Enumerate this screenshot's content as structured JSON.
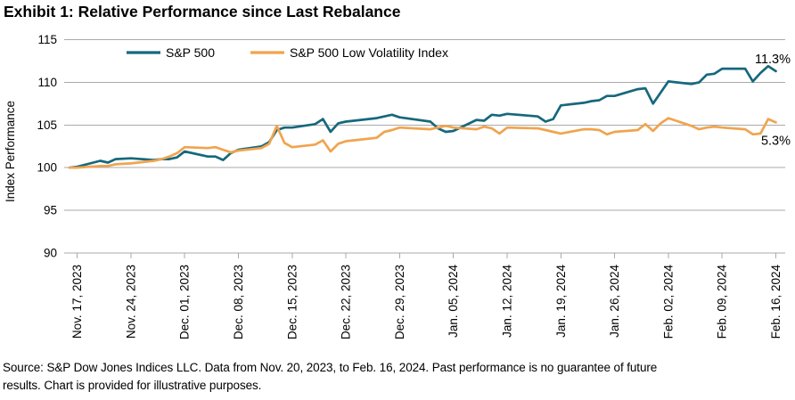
{
  "title": "Exhibit 1: Relative Performance since Last Rebalance",
  "source_lines": [
    "Source: S&P Dow Jones Indices LLC. Data from Nov. 20, 2023, to Feb. 16, 2024. Past performance is no guarantee of future",
    "results. Chart is provided for illustrative purposes."
  ],
  "chart_data": {
    "type": "line",
    "ylabel": "Index Performance",
    "ylim": [
      90,
      115
    ],
    "y_ticks": [
      90,
      95,
      100,
      105,
      110,
      115
    ],
    "grid": "horizontal",
    "legend_position": "top-inside",
    "grid_color": "#a9a9a9",
    "x_ticks": [
      {
        "date": "2023-11-17",
        "label": "Nov. 17, 2023"
      },
      {
        "date": "2023-11-24",
        "label": "Nov. 24, 2023"
      },
      {
        "date": "2023-12-01",
        "label": "Dec. 01, 2023"
      },
      {
        "date": "2023-12-08",
        "label": "Dec. 08, 2023"
      },
      {
        "date": "2023-12-15",
        "label": "Dec. 15, 2023"
      },
      {
        "date": "2023-12-22",
        "label": "Dec. 22, 2023"
      },
      {
        "date": "2023-12-29",
        "label": "Dec. 29, 2023"
      },
      {
        "date": "2024-01-05",
        "label": "Jan. 05, 2024"
      },
      {
        "date": "2024-01-12",
        "label": "Jan. 12, 2024"
      },
      {
        "date": "2024-01-19",
        "label": "Jan. 19, 2024"
      },
      {
        "date": "2024-01-26",
        "label": "Jan. 26, 2024"
      },
      {
        "date": "2024-02-02",
        "label": "Feb. 02, 2024"
      },
      {
        "date": "2024-02-09",
        "label": "Feb. 09, 2024"
      },
      {
        "date": "2024-02-16",
        "label": "Feb. 16, 2024"
      }
    ],
    "x": [
      "2023-11-16",
      "2023-11-17",
      "2023-11-20",
      "2023-11-21",
      "2023-11-22",
      "2023-11-24",
      "2023-11-27",
      "2023-11-28",
      "2023-11-29",
      "2023-11-30",
      "2023-12-01",
      "2023-12-04",
      "2023-12-05",
      "2023-12-06",
      "2023-12-07",
      "2023-12-08",
      "2023-12-11",
      "2023-12-12",
      "2023-12-13",
      "2023-12-14",
      "2023-12-15",
      "2023-12-18",
      "2023-12-19",
      "2023-12-20",
      "2023-12-21",
      "2023-12-22",
      "2023-12-26",
      "2023-12-27",
      "2023-12-28",
      "2023-12-29",
      "2024-01-02",
      "2024-01-03",
      "2024-01-04",
      "2024-01-05",
      "2024-01-08",
      "2024-01-09",
      "2024-01-10",
      "2024-01-11",
      "2024-01-12",
      "2024-01-16",
      "2024-01-17",
      "2024-01-18",
      "2024-01-19",
      "2024-01-22",
      "2024-01-23",
      "2024-01-24",
      "2024-01-25",
      "2024-01-26",
      "2024-01-29",
      "2024-01-30",
      "2024-01-31",
      "2024-02-01",
      "2024-02-02",
      "2024-02-05",
      "2024-02-06",
      "2024-02-07",
      "2024-02-08",
      "2024-02-09",
      "2024-02-12",
      "2024-02-13",
      "2024-02-14",
      "2024-02-15",
      "2024-02-16"
    ],
    "series": [
      {
        "name": "S&P 500",
        "color": "#16687c",
        "end_label": "11.3%",
        "values": [
          100.0,
          100.1,
          100.8,
          100.6,
          101.0,
          101.1,
          100.9,
          101.0,
          101.0,
          101.2,
          101.9,
          101.3,
          101.3,
          100.9,
          101.7,
          102.1,
          102.5,
          103.0,
          104.4,
          104.7,
          104.7,
          105.1,
          105.7,
          104.2,
          105.2,
          105.4,
          105.8,
          106.0,
          106.2,
          105.9,
          105.4,
          104.6,
          104.2,
          104.3,
          105.6,
          105.5,
          106.2,
          106.1,
          106.3,
          106.0,
          105.4,
          105.7,
          107.3,
          107.6,
          107.8,
          107.9,
          108.4,
          108.4,
          109.2,
          109.3,
          107.5,
          108.8,
          110.1,
          109.8,
          110.0,
          110.9,
          111.0,
          111.6,
          111.6,
          110.1,
          111.1,
          111.9,
          111.3
        ]
      },
      {
        "name": "S&P 500 Low Volatility Index",
        "color": "#f0a44e",
        "end_label": "5.3%",
        "values": [
          100.0,
          100.0,
          100.2,
          100.2,
          100.4,
          100.5,
          100.8,
          101.0,
          101.3,
          101.7,
          102.4,
          102.3,
          102.4,
          102.1,
          101.8,
          102.0,
          102.3,
          102.8,
          104.9,
          102.9,
          102.4,
          102.7,
          103.2,
          101.9,
          102.8,
          103.1,
          103.5,
          104.2,
          104.4,
          104.7,
          104.5,
          104.7,
          104.9,
          104.7,
          104.5,
          104.8,
          104.6,
          104.0,
          104.7,
          104.6,
          104.4,
          104.2,
          104.0,
          104.5,
          104.5,
          104.4,
          103.9,
          104.2,
          104.4,
          105.1,
          104.3,
          105.2,
          105.8,
          104.9,
          104.5,
          104.7,
          104.8,
          104.7,
          104.5,
          103.9,
          104.0,
          105.7,
          105.3
        ]
      }
    ]
  }
}
